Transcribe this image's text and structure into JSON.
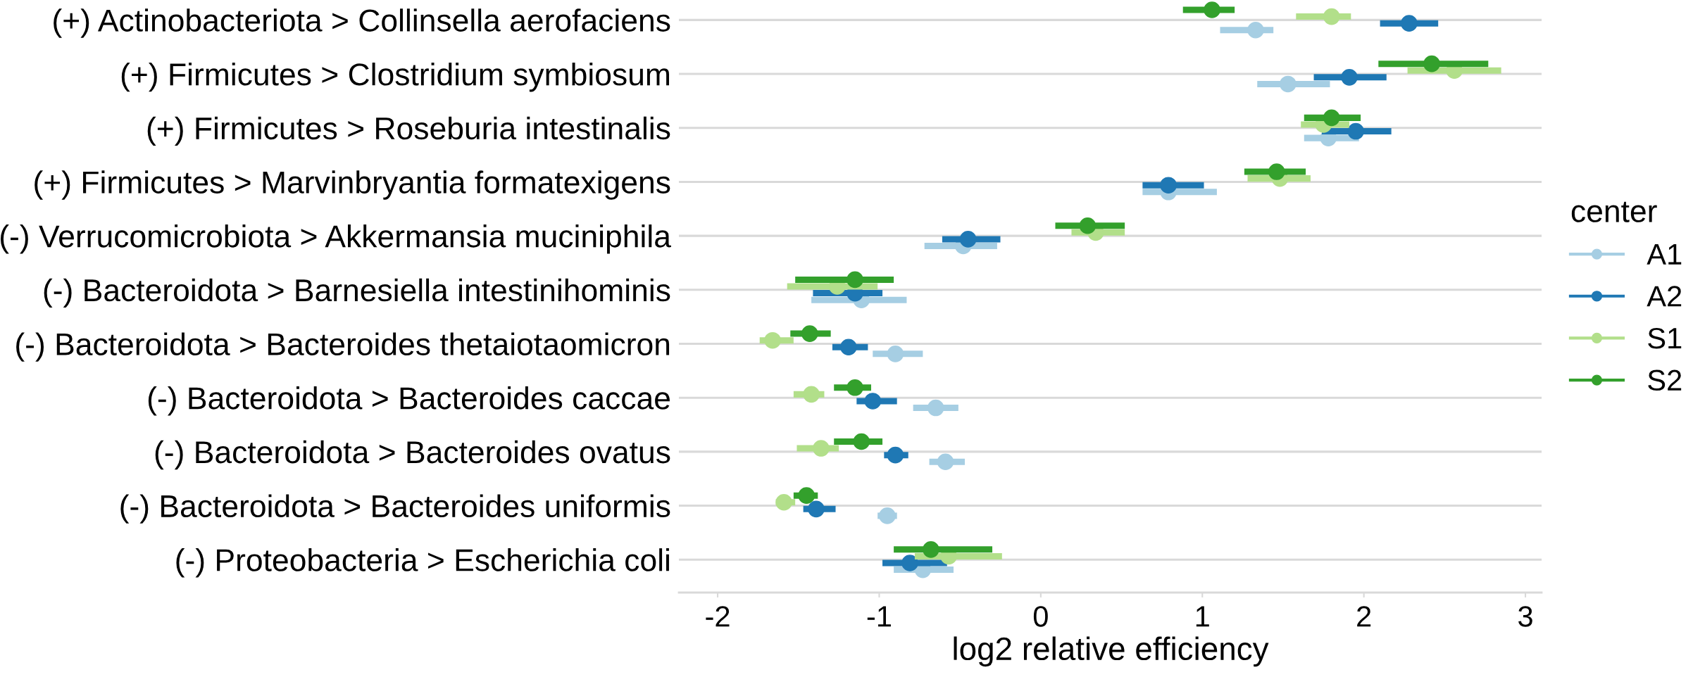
{
  "chart_data": {
    "type": "scatter",
    "orientation": "horizontal",
    "xlabel": "log2 relative efficiency",
    "legend_title": "center",
    "categories": [
      "(+) Actinobacteriota > Collinsella aerofaciens",
      "(+) Firmicutes > Clostridium symbiosum",
      "(+) Firmicutes > Roseburia intestinalis",
      "(+) Firmicutes > Marvinbryantia formatexigens",
      "(-) Verrucomicrobiota > Akkermansia muciniphila",
      "(-) Bacteroidota > Barnesiella intestinihominis",
      "(-) Bacteroidota > Bacteroides thetaiotaomicron",
      "(-) Bacteroidota > Bacteroides caccae",
      "(-) Bacteroidota > Bacteroides ovatus",
      "(-) Bacteroidota > Bacteroides uniformis",
      "(-) Proteobacteria > Escherichia coli"
    ],
    "series": [
      {
        "name": "A1",
        "color": "#a6cee3",
        "values": [
          1.33,
          1.53,
          1.78,
          0.79,
          -0.48,
          -1.11,
          -0.9,
          -0.65,
          -0.59,
          -0.95,
          -0.73
        ],
        "errors": [
          [
            1.11,
            1.44
          ],
          [
            1.34,
            1.79
          ],
          [
            1.63,
            1.97
          ],
          [
            0.63,
            1.09
          ],
          [
            -0.72,
            -0.27
          ],
          [
            -1.42,
            -0.83
          ],
          [
            -1.04,
            -0.73
          ],
          [
            -0.79,
            -0.51
          ],
          [
            -0.69,
            -0.47
          ],
          [
            -1.01,
            -0.89
          ],
          [
            -0.91,
            -0.54
          ]
        ]
      },
      {
        "name": "A2",
        "color": "#1f78b4",
        "values": [
          2.28,
          1.91,
          1.95,
          0.79,
          -0.45,
          -1.15,
          -1.19,
          -1.04,
          -0.9,
          -1.39,
          -0.81
        ],
        "errors": [
          [
            2.1,
            2.46
          ],
          [
            1.69,
            2.14
          ],
          [
            1.74,
            2.17
          ],
          [
            0.63,
            1.01
          ],
          [
            -0.61,
            -0.25
          ],
          [
            -1.41,
            -0.98
          ],
          [
            -1.29,
            -1.07
          ],
          [
            -1.14,
            -0.89
          ],
          [
            -0.97,
            -0.82
          ],
          [
            -1.47,
            -1.27
          ],
          [
            -0.98,
            -0.58
          ]
        ]
      },
      {
        "name": "S1",
        "color": "#b2df8a",
        "values": [
          1.8,
          2.56,
          1.75,
          1.48,
          0.34,
          -1.26,
          -1.66,
          -1.42,
          -1.36,
          -1.59,
          -0.57
        ],
        "errors": [
          [
            1.58,
            1.92
          ],
          [
            2.27,
            2.85
          ],
          [
            1.61,
            1.91
          ],
          [
            1.28,
            1.67
          ],
          [
            0.19,
            0.52
          ],
          [
            -1.57,
            -1.01
          ],
          [
            -1.74,
            -1.53
          ],
          [
            -1.53,
            -1.34
          ],
          [
            -1.51,
            -1.25
          ],
          [
            -1.64,
            -1.52
          ],
          [
            -0.78,
            -0.24
          ]
        ]
      },
      {
        "name": "S2",
        "color": "#33a02c",
        "values": [
          1.06,
          2.42,
          1.8,
          1.46,
          0.29,
          -1.15,
          -1.43,
          -1.15,
          -1.11,
          -1.45,
          -0.68
        ],
        "errors": [
          [
            0.88,
            1.2
          ],
          [
            2.09,
            2.77
          ],
          [
            1.63,
            1.98
          ],
          [
            1.26,
            1.64
          ],
          [
            0.09,
            0.52
          ],
          [
            -1.52,
            -0.91
          ],
          [
            -1.55,
            -1.3
          ],
          [
            -1.28,
            -1.05
          ],
          [
            -1.28,
            -0.98
          ],
          [
            -1.53,
            -1.38
          ],
          [
            -0.91,
            -0.3
          ]
        ]
      }
    ],
    "xlim": [
      -2.24,
      3.1
    ],
    "xticks": [
      -2,
      -1,
      0,
      1,
      2,
      3
    ],
    "grid": "y",
    "legend": "right",
    "marker": "circle"
  }
}
